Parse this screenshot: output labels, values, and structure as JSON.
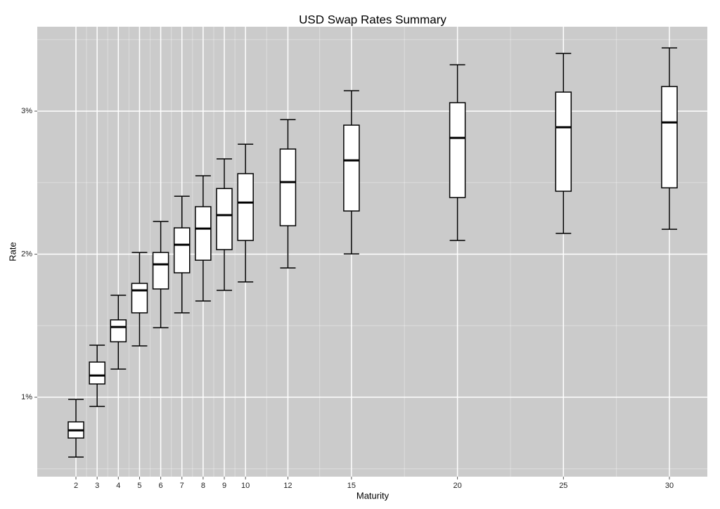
{
  "chart_data": {
    "type": "box",
    "title": "USD Swap Rates Summary",
    "x_label": "Maturity",
    "y_label": "Rate",
    "x": [
      2,
      3,
      4,
      5,
      6,
      7,
      8,
      9,
      10,
      12,
      15,
      20,
      25,
      30
    ],
    "low": [
      0.582,
      0.936,
      1.197,
      1.359,
      1.486,
      1.59,
      1.673,
      1.747,
      1.806,
      1.904,
      2.002,
      2.096,
      2.145,
      2.174
    ],
    "q1": [
      0.715,
      1.093,
      1.388,
      1.59,
      1.757,
      1.87,
      1.958,
      2.032,
      2.096,
      2.199,
      2.302,
      2.396,
      2.44,
      2.464
    ],
    "median": [
      0.769,
      1.152,
      1.491,
      1.747,
      1.929,
      2.066,
      2.179,
      2.273,
      2.361,
      2.504,
      2.656,
      2.813,
      2.887,
      2.921
    ],
    "q3": [
      0.828,
      1.246,
      1.541,
      1.796,
      2.012,
      2.184,
      2.332,
      2.459,
      2.563,
      2.735,
      2.902,
      3.059,
      3.133,
      3.172
    ],
    "high": [
      0.985,
      1.364,
      1.713,
      2.012,
      2.229,
      2.405,
      2.548,
      2.666,
      2.769,
      2.941,
      3.143,
      3.324,
      3.403,
      3.442
    ],
    "box_color": "#ffffff",
    "line_color": "#000000",
    "panel_color": "#cbcbcb",
    "grid_color": "#ffffff",
    "grid": true,
    "xlim": [
      0.175,
      31.79
    ],
    "xticks": [
      2,
      3,
      4,
      5,
      6,
      7,
      8,
      9,
      10,
      12,
      15,
      20,
      25,
      30
    ],
    "ylim": [
      0.445,
      3.59
    ],
    "yticks": [
      {
        "value": 1,
        "label": "1%"
      },
      {
        "value": 2,
        "label": "2%"
      },
      {
        "value": 3,
        "label": "3%"
      }
    ]
  }
}
